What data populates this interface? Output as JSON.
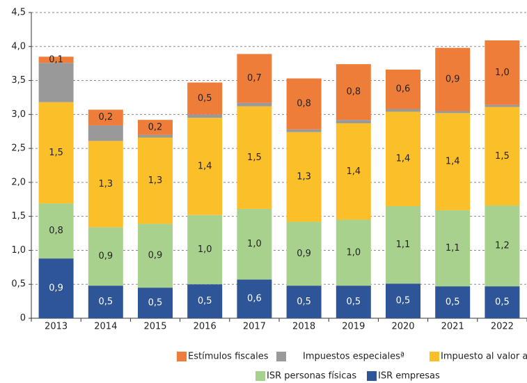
{
  "chart_data": {
    "type": "stacked_bar",
    "categories": [
      "2013",
      "2014",
      "2015",
      "2016",
      "2017",
      "2018",
      "2019",
      "2020",
      "2021",
      "2022"
    ],
    "series": [
      {
        "name": "ISR empresas",
        "color": "#2e5597",
        "values": [
          0.88,
          0.48,
          0.45,
          0.5,
          0.57,
          0.48,
          0.48,
          0.51,
          0.47,
          0.47
        ],
        "value_labels": [
          "0,9",
          "0,5",
          "0,5",
          "0,5",
          "0,6",
          "0,5",
          "0,5",
          "0,5",
          "0,5",
          "0,5"
        ]
      },
      {
        "name": "ISR personas físicas",
        "color": "#a9d18e",
        "values": [
          0.81,
          0.86,
          0.94,
          1.02,
          1.04,
          0.94,
          0.97,
          1.14,
          1.12,
          1.19
        ],
        "value_labels": [
          "0,8",
          "0,9",
          "0,9",
          "1,0",
          "1,0",
          "0,9",
          "1,0",
          "1,1",
          "1,1",
          "1,2"
        ]
      },
      {
        "name": "Impuesto al valor agregado",
        "color": "#fbbf2a",
        "values": [
          1.49,
          1.27,
          1.27,
          1.43,
          1.51,
          1.32,
          1.42,
          1.39,
          1.43,
          1.45
        ],
        "value_labels": [
          "1,5",
          "1,3",
          "1,3",
          "1,4",
          "1,5",
          "1,3",
          "1,4",
          "1,4",
          "1,4",
          "1,5"
        ]
      },
      {
        "name": "Impuestos especialesª",
        "color": "#999999",
        "values": [
          0.58,
          0.23,
          0.04,
          0.05,
          0.05,
          0.04,
          0.05,
          0.04,
          0.03,
          0.03
        ]
      },
      {
        "name": "Estímulos fiscales",
        "color": "#ef7d3a",
        "values": [
          0.09,
          0.23,
          0.22,
          0.47,
          0.72,
          0.75,
          0.82,
          0.58,
          0.93,
          0.95
        ],
        "value_labels": [
          "0,1",
          "0,2",
          "0,2",
          "0,5",
          "0,7",
          "0,8",
          "0,8",
          "0,6",
          "0,9",
          "1,0"
        ]
      }
    ],
    "ylim": [
      0,
      4.5
    ],
    "yticks": [
      0,
      {
        "value": 0.5,
        "label": "0,5"
      },
      {
        "value": 1,
        "label": "1,0"
      },
      {
        "value": 1.5,
        "label": "1,5"
      },
      {
        "value": 2,
        "label": "2,0"
      },
      {
        "value": 2.5,
        "label": "2,5"
      },
      {
        "value": 3,
        "label": "3,0"
      },
      {
        "value": 3.5,
        "label": "3,5"
      },
      {
        "value": 4,
        "label": "4,0"
      },
      {
        "value": 4.5,
        "label": "4,5"
      }
    ],
    "grid": true
  }
}
